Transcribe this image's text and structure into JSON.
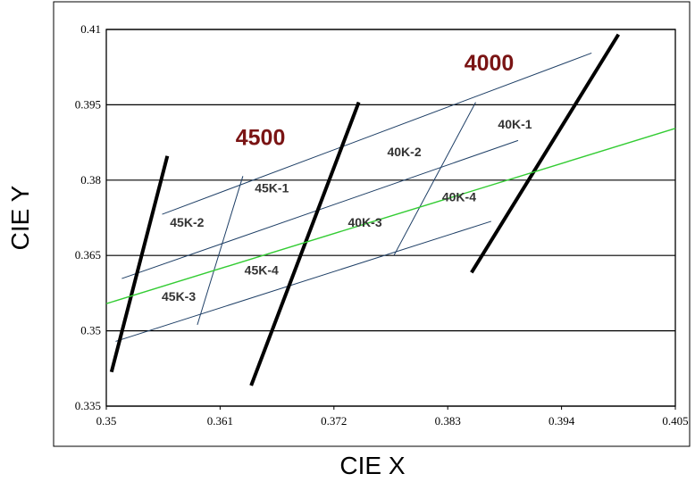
{
  "chart_data": {
    "type": "line",
    "xlabel": "CIE X",
    "ylabel": "CIE Y",
    "xlim": [
      0.35,
      0.405
    ],
    "ylim": [
      0.335,
      0.41
    ],
    "x_ticks": [
      "0.35",
      "0.361",
      "0.372",
      "0.383",
      "0.394",
      "0.405"
    ],
    "y_ticks": [
      "0.335",
      "0.35",
      "0.365",
      "0.38",
      "0.395",
      "0.41"
    ],
    "grid": "horizontal",
    "colors": {
      "region_lines": "#1e3f66",
      "isotherm": "#000000",
      "locus": "#33cc33",
      "cct_label": "#7a1414"
    },
    "series": [
      {
        "color": "#1e3f66",
        "points": [
          [
            0.3509,
            0.3479
          ],
          [
            0.3872,
            0.3718
          ]
        ]
      },
      {
        "color": "#1e3f66",
        "points": [
          [
            0.3515,
            0.3604
          ],
          [
            0.3898,
            0.3879
          ]
        ]
      },
      {
        "color": "#1e3f66",
        "points": [
          [
            0.3554,
            0.3732
          ],
          [
            0.3969,
            0.4053
          ]
        ]
      },
      {
        "color": "#1e3f66",
        "points": [
          [
            0.3588,
            0.3512
          ],
          [
            0.3632,
            0.3808
          ]
        ]
      },
      {
        "color": "#1e3f66",
        "points": [
          [
            0.3778,
            0.365
          ],
          [
            0.3857,
            0.3955
          ]
        ]
      },
      {
        "color": "#000000",
        "points": [
          [
            0.3505,
            0.3418
          ],
          [
            0.3559,
            0.3848
          ]
        ]
      },
      {
        "color": "#000000",
        "points": [
          [
            0.364,
            0.3391
          ],
          [
            0.3744,
            0.3955
          ]
        ]
      },
      {
        "color": "#000000",
        "points": [
          [
            0.3853,
            0.3616
          ],
          [
            0.3995,
            0.409
          ]
        ]
      },
      {
        "color": "#33cc33",
        "points": [
          [
            0.35,
            0.3554
          ],
          [
            0.405,
            0.3903
          ]
        ]
      }
    ],
    "annotations": [
      {
        "text": "45K-1",
        "x": 0.366,
        "y": 0.3776,
        "style": "region"
      },
      {
        "text": "45K-2",
        "x": 0.3578,
        "y": 0.3707,
        "style": "region"
      },
      {
        "text": "45K-3",
        "x": 0.357,
        "y": 0.356,
        "style": "region"
      },
      {
        "text": "45K-4",
        "x": 0.365,
        "y": 0.3612,
        "style": "region"
      },
      {
        "text": "40K-1",
        "x": 0.3895,
        "y": 0.3903,
        "style": "region"
      },
      {
        "text": "40K-2",
        "x": 0.3788,
        "y": 0.3848,
        "style": "region"
      },
      {
        "text": "40K-3",
        "x": 0.375,
        "y": 0.3707,
        "style": "region"
      },
      {
        "text": "40K-4",
        "x": 0.3841,
        "y": 0.3758,
        "style": "region"
      },
      {
        "text": "4500",
        "x": 0.3649,
        "y": 0.387,
        "style": "cct"
      },
      {
        "text": "4000",
        "x": 0.387,
        "y": 0.4018,
        "style": "cct"
      }
    ]
  }
}
